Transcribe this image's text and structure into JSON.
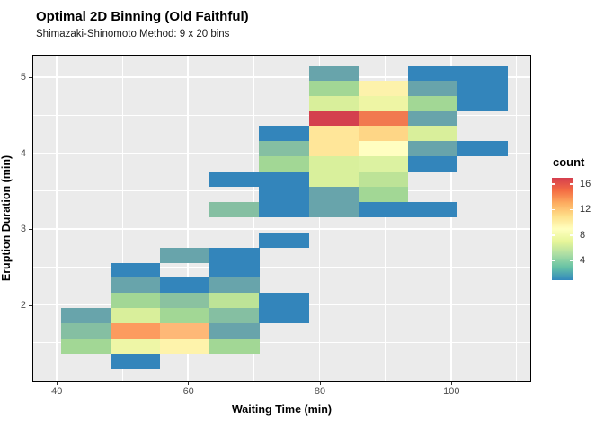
{
  "header": {
    "title": "Optimal 2D Binning (Old Faithful)",
    "subtitle": "Shimazaki-Shinomoto Method: 9 x 20 bins"
  },
  "axes": {
    "x": {
      "label": "Waiting Time (min)",
      "ticks": [
        "40",
        "60",
        "80",
        "100"
      ]
    },
    "y": {
      "label": "Eruption Duration (min)",
      "ticks": [
        "5",
        "4",
        "3",
        "2"
      ]
    }
  },
  "legend": {
    "title": "count",
    "tick_values": [
      16,
      12,
      8,
      4
    ],
    "value_range": [
      1,
      17
    ],
    "gradient_bottom_to_top": [
      "#3288BD",
      "#66C2A5",
      "#ABDDA4",
      "#E6F598",
      "#FFFFBF",
      "#FEE08B",
      "#FDAE61",
      "#F46D43",
      "#D53E4F"
    ]
  },
  "colors": {
    "panel_bg": "#EBEBEB",
    "gridline": "#FFFFFF",
    "panel_border": "#000000",
    "tick_label": "#4D4D4D"
  },
  "chart_data": {
    "type": "heatmap",
    "title": "Optimal 2D Binning (Old Faithful)",
    "subtitle": "Shimazaki-Shinomoto Method: 9 x 20 bins",
    "xlabel": "Waiting Time (min)",
    "ylabel": "Eruption Duration (min)",
    "legend_title": "count",
    "legend_position": "right",
    "grid": true,
    "n_x_bins": 9,
    "n_y_bins": 20,
    "x_axis_ticks_min": [
      40,
      60,
      80,
      100
    ],
    "y_axis_ticks_min": [
      2,
      3,
      4,
      5
    ],
    "x_bin_edges_min_est": [
      40.6,
      48.1,
      55.7,
      63.2,
      70.8,
      78.3,
      85.9,
      93.4,
      101.0,
      108.5
    ],
    "y_bin_edges_min_est": [
      5.16,
      4.96,
      4.76,
      4.56,
      4.36,
      4.16,
      3.96,
      3.76,
      3.56,
      3.36,
      3.16,
      2.96,
      2.76,
      2.56,
      2.36,
      2.16,
      1.96,
      1.76,
      1.56,
      1.36,
      1.16
    ],
    "note": "col = x-bin index (0 = leftmost, lowest waiting time); row = y-bin index (0 = topmost, longest duration); n = estimated count from color scale",
    "tiles": [
      {
        "c": 5,
        "r": 0,
        "n": 3,
        "color": "#68A4AB"
      },
      {
        "c": 7,
        "r": 0,
        "n": 1,
        "color": "#3385BB"
      },
      {
        "c": 8,
        "r": 0,
        "n": 1,
        "color": "#3385BB"
      },
      {
        "c": 5,
        "r": 1,
        "n": 5,
        "color": "#A2D795"
      },
      {
        "c": 6,
        "r": 1,
        "n": 9,
        "color": "#FDF2AB"
      },
      {
        "c": 7,
        "r": 1,
        "n": 3,
        "color": "#68A4AB"
      },
      {
        "c": 8,
        "r": 1,
        "n": 1,
        "color": "#3385BB"
      },
      {
        "c": 5,
        "r": 2,
        "n": 7,
        "color": "#D9EF9B"
      },
      {
        "c": 6,
        "r": 2,
        "n": 8,
        "color": "#EEF5A4"
      },
      {
        "c": 7,
        "r": 2,
        "n": 5,
        "color": "#A2D795"
      },
      {
        "c": 8,
        "r": 2,
        "n": 1,
        "color": "#3385BB"
      },
      {
        "c": 5,
        "r": 3,
        "n": 17,
        "color": "#D4404E"
      },
      {
        "c": 6,
        "r": 3,
        "n": 15,
        "color": "#F1794F"
      },
      {
        "c": 7,
        "r": 3,
        "n": 3,
        "color": "#68A4AB"
      },
      {
        "c": 4,
        "r": 4,
        "n": 1,
        "color": "#3385BB"
      },
      {
        "c": 5,
        "r": 4,
        "n": 10,
        "color": "#FFE699"
      },
      {
        "c": 6,
        "r": 4,
        "n": 11,
        "color": "#FED686"
      },
      {
        "c": 7,
        "r": 4,
        "n": 7,
        "color": "#D9EF9B"
      },
      {
        "c": 4,
        "r": 5,
        "n": 4,
        "color": "#85BFA2"
      },
      {
        "c": 5,
        "r": 5,
        "n": 10,
        "color": "#FFE699"
      },
      {
        "c": 6,
        "r": 5,
        "n": 9,
        "color": "#FFFEC1"
      },
      {
        "c": 7,
        "r": 5,
        "n": 3,
        "color": "#68A4AB"
      },
      {
        "c": 8,
        "r": 5,
        "n": 1,
        "color": "#3385BB"
      },
      {
        "c": 4,
        "r": 6,
        "n": 5,
        "color": "#A2D795"
      },
      {
        "c": 5,
        "r": 6,
        "n": 7,
        "color": "#D9F09C"
      },
      {
        "c": 6,
        "r": 6,
        "n": 7,
        "color": "#DCF2A1"
      },
      {
        "c": 7,
        "r": 6,
        "n": 1,
        "color": "#3385BB"
      },
      {
        "c": 3,
        "r": 7,
        "n": 1,
        "color": "#3385BB"
      },
      {
        "c": 4,
        "r": 7,
        "n": 1,
        "color": "#3385BB"
      },
      {
        "c": 5,
        "r": 7,
        "n": 7,
        "color": "#D9F09C"
      },
      {
        "c": 6,
        "r": 7,
        "n": 6,
        "color": "#BDE397"
      },
      {
        "c": 4,
        "r": 8,
        "n": 1,
        "color": "#3385BB"
      },
      {
        "c": 5,
        "r": 8,
        "n": 3,
        "color": "#68A4AB"
      },
      {
        "c": 6,
        "r": 8,
        "n": 5,
        "color": "#A2D795"
      },
      {
        "c": 3,
        "r": 9,
        "n": 4,
        "color": "#85BFA2"
      },
      {
        "c": 4,
        "r": 9,
        "n": 1,
        "color": "#3385BB"
      },
      {
        "c": 5,
        "r": 9,
        "n": 3,
        "color": "#68A4AB"
      },
      {
        "c": 6,
        "r": 9,
        "n": 1,
        "color": "#3385BB"
      },
      {
        "c": 7,
        "r": 9,
        "n": 1,
        "color": "#3385BB"
      },
      {
        "c": 4,
        "r": 11,
        "n": 1,
        "color": "#3385BB"
      },
      {
        "c": 2,
        "r": 12,
        "n": 3,
        "color": "#68A4AB"
      },
      {
        "c": 3,
        "r": 12,
        "n": 1,
        "color": "#3385BB"
      },
      {
        "c": 1,
        "r": 13,
        "n": 1,
        "color": "#3385BB"
      },
      {
        "c": 3,
        "r": 13,
        "n": 1,
        "color": "#3385BB"
      },
      {
        "c": 1,
        "r": 14,
        "n": 3,
        "color": "#68A4AB"
      },
      {
        "c": 2,
        "r": 14,
        "n": 1,
        "color": "#3385BB"
      },
      {
        "c": 3,
        "r": 14,
        "n": 3,
        "color": "#68A4AB"
      },
      {
        "c": 1,
        "r": 15,
        "n": 5,
        "color": "#A2D795"
      },
      {
        "c": 2,
        "r": 15,
        "n": 4,
        "color": "#8AC2A0"
      },
      {
        "c": 3,
        "r": 15,
        "n": 6,
        "color": "#BDE397"
      },
      {
        "c": 4,
        "r": 15,
        "n": 1,
        "color": "#3385BB"
      },
      {
        "c": 0,
        "r": 16,
        "n": 3,
        "color": "#68A4AB"
      },
      {
        "c": 1,
        "r": 16,
        "n": 7,
        "color": "#D9EF9B"
      },
      {
        "c": 2,
        "r": 16,
        "n": 5,
        "color": "#A2D795"
      },
      {
        "c": 3,
        "r": 16,
        "n": 4,
        "color": "#85BFA2"
      },
      {
        "c": 4,
        "r": 16,
        "n": 1,
        "color": "#3385BB"
      },
      {
        "c": 0,
        "r": 17,
        "n": 4,
        "color": "#85BFA2"
      },
      {
        "c": 1,
        "r": 17,
        "n": 13,
        "color": "#FC9B5F"
      },
      {
        "c": 2,
        "r": 17,
        "n": 12,
        "color": "#FEB877"
      },
      {
        "c": 3,
        "r": 17,
        "n": 3,
        "color": "#68A4AB"
      },
      {
        "c": 0,
        "r": 18,
        "n": 5,
        "color": "#A2D795"
      },
      {
        "c": 1,
        "r": 18,
        "n": 8,
        "color": "#EEF6A6"
      },
      {
        "c": 2,
        "r": 18,
        "n": 9,
        "color": "#FEF3AB"
      },
      {
        "c": 3,
        "r": 18,
        "n": 5,
        "color": "#A2D795"
      },
      {
        "c": 1,
        "r": 19,
        "n": 1,
        "color": "#3385BB"
      }
    ]
  }
}
